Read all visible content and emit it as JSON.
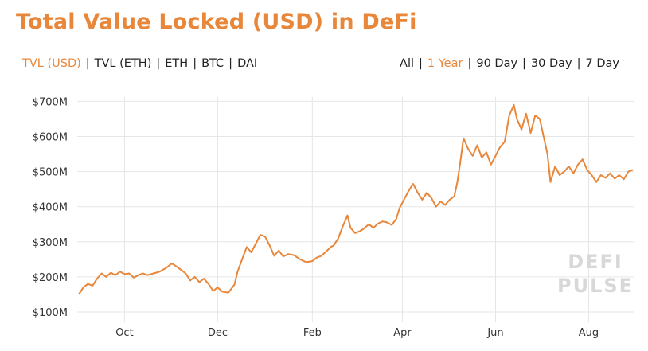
{
  "title": "Total Value Locked (USD) in DeFi",
  "metric_options": [
    {
      "label": "TVL (USD)",
      "active": true
    },
    {
      "label": "TVL (ETH)",
      "active": false
    },
    {
      "label": "ETH",
      "active": false
    },
    {
      "label": "BTC",
      "active": false
    },
    {
      "label": "DAI",
      "active": false
    }
  ],
  "range_options": [
    {
      "label": "All",
      "active": false
    },
    {
      "label": "1 Year",
      "active": true
    },
    {
      "label": "90 Day",
      "active": false
    },
    {
      "label": "30 Day",
      "active": false
    },
    {
      "label": "7 Day",
      "active": false
    }
  ],
  "separator": "|",
  "watermark": [
    "DEFI",
    "PULSE"
  ],
  "colors": {
    "line": "#e8863a",
    "accent": "#e8863a",
    "grid": "#e6e6e6"
  },
  "chart_data": {
    "type": "line",
    "title": "Total Value Locked (USD) in DeFi",
    "grid": true,
    "ylim": [
      100,
      710
    ],
    "y_ticks": [
      {
        "value": 100,
        "label": "$100M"
      },
      {
        "value": 200,
        "label": "$200M"
      },
      {
        "value": 300,
        "label": "$300M"
      },
      {
        "value": 400,
        "label": "$400M"
      },
      {
        "value": 500,
        "label": "$500M"
      },
      {
        "value": 600,
        "label": "$600M"
      },
      {
        "value": 700,
        "label": "$700M"
      }
    ],
    "xlim": [
      "2018-09-14",
      "2019-09-14"
    ],
    "x_ticks": [
      {
        "date": "2018-10-15",
        "label": "Oct"
      },
      {
        "date": "2018-12-15",
        "label": "Dec"
      },
      {
        "date": "2019-02-15",
        "label": "Feb"
      },
      {
        "date": "2019-04-15",
        "label": "Apr"
      },
      {
        "date": "2019-06-15",
        "label": "Jun"
      },
      {
        "date": "2019-08-15",
        "label": "Aug"
      }
    ],
    "series": [
      {
        "values": [
          [
            "2018-09-15",
            150
          ],
          [
            "2018-09-18",
            170
          ],
          [
            "2018-09-21",
            180
          ],
          [
            "2018-09-24",
            175
          ],
          [
            "2018-09-27",
            195
          ],
          [
            "2018-09-30",
            210
          ],
          [
            "2018-10-03",
            200
          ],
          [
            "2018-10-06",
            212
          ],
          [
            "2018-10-09",
            205
          ],
          [
            "2018-10-12",
            215
          ],
          [
            "2018-10-15",
            208
          ],
          [
            "2018-10-18",
            210
          ],
          [
            "2018-10-21",
            198
          ],
          [
            "2018-10-24",
            205
          ],
          [
            "2018-10-27",
            210
          ],
          [
            "2018-10-30",
            205
          ],
          [
            "2018-11-03",
            210
          ],
          [
            "2018-11-07",
            215
          ],
          [
            "2018-11-11",
            225
          ],
          [
            "2018-11-15",
            238
          ],
          [
            "2018-11-18",
            230
          ],
          [
            "2018-11-21",
            220
          ],
          [
            "2018-11-24",
            210
          ],
          [
            "2018-11-27",
            190
          ],
          [
            "2018-11-30",
            200
          ],
          [
            "2018-12-03",
            185
          ],
          [
            "2018-12-06",
            195
          ],
          [
            "2018-12-09",
            180
          ],
          [
            "2018-12-12",
            160
          ],
          [
            "2018-12-15",
            170
          ],
          [
            "2018-12-18",
            158
          ],
          [
            "2018-12-22",
            155
          ],
          [
            "2018-12-26",
            178
          ],
          [
            "2018-12-28",
            215
          ],
          [
            "2018-12-31",
            250
          ],
          [
            "2019-01-03",
            285
          ],
          [
            "2019-01-06",
            270
          ],
          [
            "2019-01-09",
            295
          ],
          [
            "2019-01-12",
            320
          ],
          [
            "2019-01-15",
            315
          ],
          [
            "2019-01-18",
            290
          ],
          [
            "2019-01-21",
            260
          ],
          [
            "2019-01-24",
            275
          ],
          [
            "2019-01-27",
            258
          ],
          [
            "2019-01-30",
            265
          ],
          [
            "2019-02-03",
            262
          ],
          [
            "2019-02-07",
            250
          ],
          [
            "2019-02-11",
            242
          ],
          [
            "2019-02-15",
            245
          ],
          [
            "2019-02-18",
            255
          ],
          [
            "2019-02-21",
            260
          ],
          [
            "2019-02-24",
            272
          ],
          [
            "2019-02-27",
            285
          ],
          [
            "2019-03-01",
            290
          ],
          [
            "2019-03-04",
            310
          ],
          [
            "2019-03-07",
            345
          ],
          [
            "2019-03-10",
            375
          ],
          [
            "2019-03-12",
            340
          ],
          [
            "2019-03-15",
            325
          ],
          [
            "2019-03-18",
            330
          ],
          [
            "2019-03-21",
            338
          ],
          [
            "2019-03-24",
            350
          ],
          [
            "2019-03-27",
            340
          ],
          [
            "2019-03-30",
            352
          ],
          [
            "2019-04-02",
            358
          ],
          [
            "2019-04-05",
            355
          ],
          [
            "2019-04-08",
            348
          ],
          [
            "2019-04-11",
            365
          ],
          [
            "2019-04-13",
            395
          ],
          [
            "2019-04-16",
            420
          ],
          [
            "2019-04-19",
            445
          ],
          [
            "2019-04-22",
            465
          ],
          [
            "2019-04-25",
            440
          ],
          [
            "2019-04-28",
            420
          ],
          [
            "2019-05-01",
            440
          ],
          [
            "2019-05-04",
            425
          ],
          [
            "2019-05-07",
            400
          ],
          [
            "2019-05-10",
            415
          ],
          [
            "2019-05-13",
            405
          ],
          [
            "2019-05-16",
            420
          ],
          [
            "2019-05-19",
            430
          ],
          [
            "2019-05-21",
            470
          ],
          [
            "2019-05-23",
            530
          ],
          [
            "2019-05-25",
            595
          ],
          [
            "2019-05-28",
            565
          ],
          [
            "2019-05-31",
            545
          ],
          [
            "2019-06-03",
            575
          ],
          [
            "2019-06-06",
            540
          ],
          [
            "2019-06-09",
            555
          ],
          [
            "2019-06-12",
            520
          ],
          [
            "2019-06-15",
            545
          ],
          [
            "2019-06-18",
            570
          ],
          [
            "2019-06-21",
            585
          ],
          [
            "2019-06-24",
            660
          ],
          [
            "2019-06-27",
            690
          ],
          [
            "2019-06-29",
            650
          ],
          [
            "2019-07-02",
            620
          ],
          [
            "2019-07-05",
            665
          ],
          [
            "2019-07-08",
            610
          ],
          [
            "2019-07-11",
            660
          ],
          [
            "2019-07-14",
            650
          ],
          [
            "2019-07-17",
            590
          ],
          [
            "2019-07-19",
            550
          ],
          [
            "2019-07-21",
            470
          ],
          [
            "2019-07-24",
            515
          ],
          [
            "2019-07-27",
            490
          ],
          [
            "2019-07-30",
            500
          ],
          [
            "2019-08-02",
            515
          ],
          [
            "2019-08-05",
            495
          ],
          [
            "2019-08-08",
            520
          ],
          [
            "2019-08-11",
            535
          ],
          [
            "2019-08-14",
            505
          ],
          [
            "2019-08-17",
            490
          ],
          [
            "2019-08-20",
            470
          ],
          [
            "2019-08-23",
            490
          ],
          [
            "2019-08-26",
            482
          ],
          [
            "2019-08-29",
            495
          ],
          [
            "2019-09-01",
            480
          ],
          [
            "2019-09-04",
            490
          ],
          [
            "2019-09-07",
            478
          ],
          [
            "2019-09-10",
            500
          ],
          [
            "2019-09-13",
            505
          ]
        ]
      }
    ]
  }
}
